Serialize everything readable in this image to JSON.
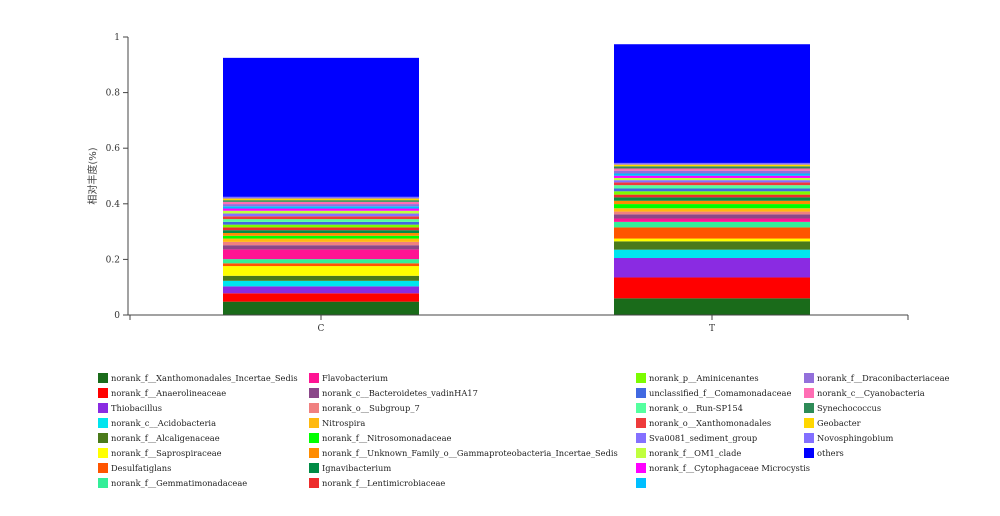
{
  "chart_data": {
    "type": "bar",
    "stacked": true,
    "categories": [
      "C",
      "T"
    ],
    "ylabel": "相对丰度(%)",
    "ylim": [
      0,
      1
    ],
    "yticks": [
      "0",
      "0.2",
      "0.4",
      "0.6",
      "0.8",
      "1"
    ],
    "legend_position": "bottom",
    "series": [
      {
        "name": "norank_f__Xanthomonadales_Incertae_Sedis",
        "color": "#1a6b1a",
        "values": [
          0.048,
          0.06
        ]
      },
      {
        "name": "norank_f__Anaerolineaceae",
        "color": "#ff0000",
        "values": [
          0.03,
          0.075
        ]
      },
      {
        "name": "Thiobacillus",
        "color": "#8a2be2",
        "values": [
          0.025,
          0.07
        ]
      },
      {
        "name": "norank_c__Acidobacteria",
        "color": "#00e5ee",
        "values": [
          0.02,
          0.03
        ]
      },
      {
        "name": "norank_f__Alcaligenaceae",
        "color": "#4a7a1a",
        "values": [
          0.018,
          0.03
        ]
      },
      {
        "name": "norank_f__Saprospiraceae",
        "color": "#ffff00",
        "values": [
          0.035,
          0.01
        ]
      },
      {
        "name": "Desulfatiglans",
        "color": "#ff5500",
        "values": [
          0.01,
          0.04
        ]
      },
      {
        "name": "norank_f__Gemmatimonadaceae",
        "color": "#33ee99",
        "values": [
          0.015,
          0.02
        ]
      },
      {
        "name": "Flavobacterium",
        "color": "#ff1493",
        "values": [
          0.035,
          0.012
        ]
      },
      {
        "name": "norank_c__Bacteroidetes_vadinHA17",
        "color": "#8b4789",
        "values": [
          0.015,
          0.015
        ]
      },
      {
        "name": "norank_o__Subgroup_7",
        "color": "#f08080",
        "values": [
          0.012,
          0.01
        ]
      },
      {
        "name": "Nitrospira",
        "color": "#ffb90f",
        "values": [
          0.012,
          0.012
        ]
      },
      {
        "name": "norank_f__Nitrosomonadaceae",
        "color": "#00ff00",
        "values": [
          0.01,
          0.015
        ]
      },
      {
        "name": "norank_f__Unknown_Family_o__Gammaproteobacteria_Incertae_Sedis",
        "color": "#ff8c00",
        "values": [
          0.01,
          0.012
        ]
      },
      {
        "name": "Ignavibacterium",
        "color": "#008b45",
        "values": [
          0.01,
          0.012
        ]
      },
      {
        "name": "norank_f__Lentimicrobiaceae",
        "color": "#ee2c2c",
        "values": [
          0.01,
          0.01
        ]
      },
      {
        "name": "norank_p__Aminicenantes",
        "color": "#7cfc00",
        "values": [
          0.01,
          0.012
        ]
      },
      {
        "name": "unclassified_f__Comamonadaceae",
        "color": "#4169e1",
        "values": [
          0.01,
          0.01
        ]
      },
      {
        "name": "norank_o__Run-SP154",
        "color": "#54ff9f",
        "values": [
          0.01,
          0.012
        ]
      },
      {
        "name": "norank_o__Xanthomonadales",
        "color": "#ee3b3b",
        "values": [
          0.01,
          0.01
        ]
      },
      {
        "name": "Sva0081_sediment_group",
        "color": "#8470ff",
        "values": [
          0.01,
          0.008
        ]
      },
      {
        "name": "norank_f__OM1_clade",
        "color": "#c0ff3e",
        "values": [
          0.01,
          0.008
        ]
      },
      {
        "name": "norank_f__Cytophagaceae Microcystis",
        "color": "#ff00ff",
        "values": [
          0.008,
          0.008
        ]
      },
      {
        "name": "",
        "color": "#00bfff",
        "values": [
          0.008,
          0.008
        ]
      },
      {
        "name": "norank_f__Draconibacteriaceae",
        "color": "#9370db",
        "values": [
          0.008,
          0.01
        ]
      },
      {
        "name": "norank_c__Cyanobacteria",
        "color": "#ff6eb4",
        "values": [
          0.008,
          0.008
        ]
      },
      {
        "name": "Synechococcus",
        "color": "#2e8b57",
        "values": [
          0.006,
          0.008
        ]
      },
      {
        "name": "Geobacter",
        "color": "#ffd700",
        "values": [
          0.006,
          0.006
        ]
      },
      {
        "name": "Novosphingobium",
        "color": "#836fff",
        "values": [
          0.006,
          0.006
        ]
      },
      {
        "name": "others",
        "color": "#0000ff",
        "values": [
          0.5,
          0.427
        ]
      }
    ]
  }
}
